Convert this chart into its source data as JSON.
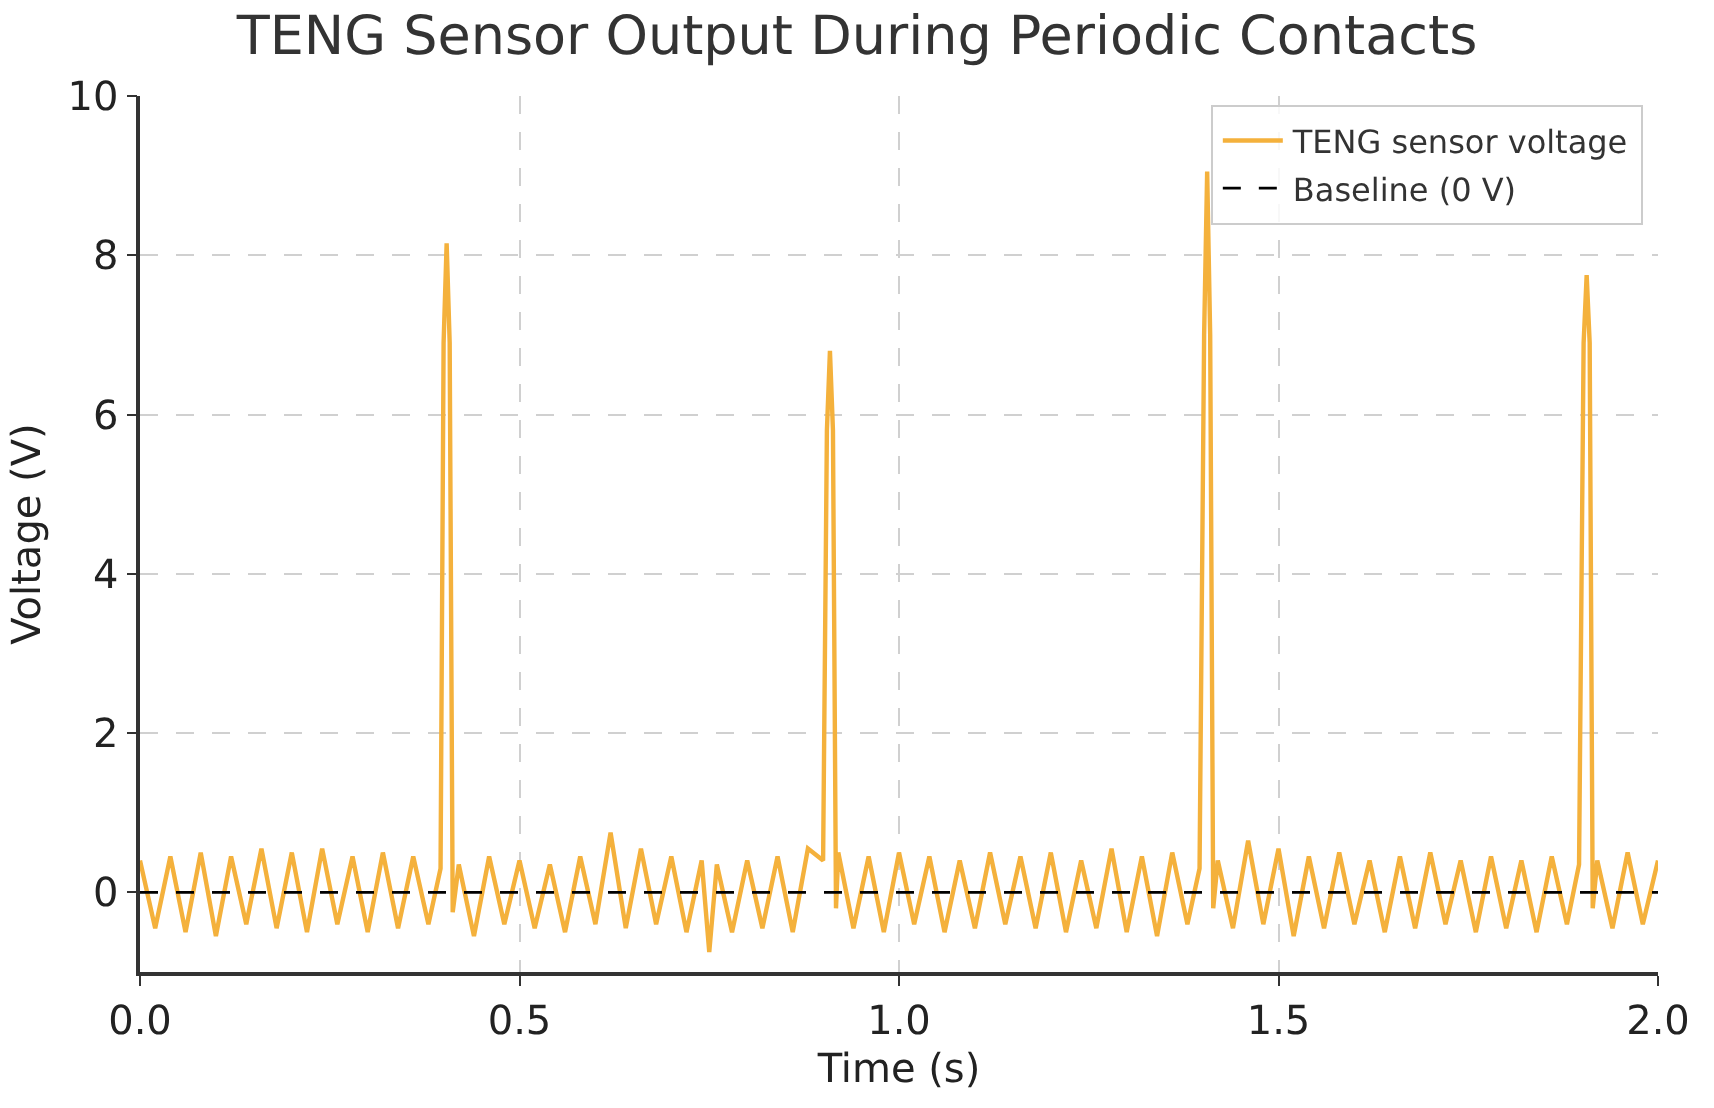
{
  "chart_data": {
    "type": "line",
    "title": "TENG Sensor Output During Periodic Contacts",
    "xlabel": "Time (s)",
    "ylabel": "Voltage (V)",
    "x": [
      0.0,
      0.02,
      0.04,
      0.06,
      0.08,
      0.1,
      0.12,
      0.14,
      0.16,
      0.18,
      0.2,
      0.22,
      0.24,
      0.26,
      0.28,
      0.3,
      0.32,
      0.34,
      0.36,
      0.38,
      0.396,
      0.4,
      0.404,
      0.408,
      0.412,
      0.42,
      0.44,
      0.46,
      0.48,
      0.5,
      0.52,
      0.54,
      0.56,
      0.58,
      0.6,
      0.62,
      0.64,
      0.66,
      0.68,
      0.7,
      0.72,
      0.74,
      0.75,
      0.76,
      0.78,
      0.8,
      0.82,
      0.84,
      0.86,
      0.88,
      0.9,
      0.905,
      0.909,
      0.913,
      0.917,
      0.92,
      0.94,
      0.96,
      0.98,
      1.0,
      1.02,
      1.04,
      1.06,
      1.08,
      1.1,
      1.12,
      1.14,
      1.16,
      1.18,
      1.2,
      1.22,
      1.24,
      1.26,
      1.28,
      1.3,
      1.32,
      1.34,
      1.36,
      1.38,
      1.396,
      1.402,
      1.406,
      1.41,
      1.414,
      1.42,
      1.44,
      1.46,
      1.48,
      1.5,
      1.52,
      1.54,
      1.56,
      1.58,
      1.6,
      1.62,
      1.64,
      1.66,
      1.68,
      1.7,
      1.72,
      1.74,
      1.76,
      1.78,
      1.8,
      1.82,
      1.84,
      1.86,
      1.88,
      1.896,
      1.902,
      1.906,
      1.91,
      1.914,
      1.92,
      1.94,
      1.96,
      1.98,
      2.0
    ],
    "series": [
      {
        "name": "TENG sensor voltage",
        "color": "#f4b13c",
        "values": [
          0.4,
          -0.45,
          0.45,
          -0.5,
          0.5,
          -0.55,
          0.45,
          -0.4,
          0.55,
          -0.45,
          0.5,
          -0.5,
          0.55,
          -0.4,
          0.45,
          -0.5,
          0.5,
          -0.45,
          0.45,
          -0.4,
          0.3,
          6.9,
          8.15,
          6.9,
          -0.25,
          0.35,
          -0.55,
          0.45,
          -0.4,
          0.4,
          -0.45,
          0.35,
          -0.5,
          0.45,
          -0.4,
          0.75,
          -0.45,
          0.55,
          -0.4,
          0.45,
          -0.5,
          0.4,
          -0.75,
          0.35,
          -0.5,
          0.4,
          -0.45,
          0.45,
          -0.5,
          0.55,
          0.4,
          5.8,
          6.8,
          5.8,
          -0.2,
          0.5,
          -0.45,
          0.45,
          -0.5,
          0.5,
          -0.4,
          0.45,
          -0.5,
          0.4,
          -0.45,
          0.5,
          -0.4,
          0.45,
          -0.45,
          0.5,
          -0.5,
          0.4,
          -0.45,
          0.55,
          -0.5,
          0.45,
          -0.55,
          0.5,
          -0.4,
          0.3,
          7.0,
          9.05,
          7.0,
          -0.2,
          0.4,
          -0.45,
          0.65,
          -0.4,
          0.55,
          -0.55,
          0.45,
          -0.45,
          0.5,
          -0.4,
          0.4,
          -0.5,
          0.45,
          -0.45,
          0.5,
          -0.4,
          0.4,
          -0.5,
          0.45,
          -0.45,
          0.4,
          -0.5,
          0.45,
          -0.4,
          0.35,
          6.9,
          7.75,
          6.9,
          -0.2,
          0.4,
          -0.45,
          0.5,
          -0.4,
          0.4
        ]
      }
    ],
    "ref_lines": [
      {
        "axis": "y",
        "value": 0,
        "label": "Baseline (0 V)",
        "color": "#000000",
        "line_style": "dashed"
      }
    ],
    "xlim": [
      0,
      2
    ],
    "xticks": [
      {
        "value": 0,
        "label": "0.0"
      },
      {
        "value": 0.5,
        "label": "0.5"
      },
      {
        "value": 1,
        "label": "1.0"
      },
      {
        "value": 1.5,
        "label": "1.5"
      },
      {
        "value": 2,
        "label": "2.0"
      }
    ],
    "ylim": [
      -1,
      10
    ],
    "yticks": [
      0,
      2,
      4,
      6,
      8,
      10
    ],
    "grid": true,
    "legend": "top right",
    "line_style": "solid",
    "marker": "none"
  }
}
